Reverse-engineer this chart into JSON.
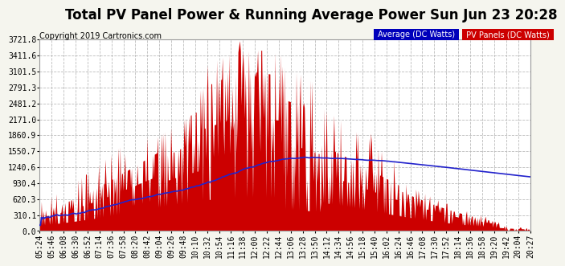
{
  "title": "Total PV Panel Power & Running Average Power Sun Jun 23 20:28",
  "copyright": "Copyright 2019 Cartronics.com",
  "legend_avg": "Average (DC Watts)",
  "legend_pv": "PV Panels (DC Watts)",
  "legend_avg_bg": "#0000bb",
  "legend_pv_bg": "#cc0000",
  "bg_color": "#f5f5ee",
  "plot_bg": "#ffffff",
  "ylim": [
    0,
    3721.8
  ],
  "yticks": [
    0.0,
    310.1,
    620.3,
    930.4,
    1240.6,
    1550.7,
    1860.9,
    2171.0,
    2481.2,
    2791.3,
    3101.5,
    3411.6,
    3721.8
  ],
  "time_labels": [
    "05:24",
    "05:46",
    "06:08",
    "06:30",
    "06:52",
    "07:14",
    "07:36",
    "07:58",
    "08:20",
    "08:42",
    "09:04",
    "09:26",
    "09:48",
    "10:10",
    "10:32",
    "10:54",
    "11:16",
    "11:38",
    "12:00",
    "12:22",
    "12:44",
    "13:06",
    "13:28",
    "13:50",
    "14:12",
    "14:34",
    "14:56",
    "15:18",
    "15:40",
    "16:02",
    "16:24",
    "16:46",
    "17:08",
    "17:30",
    "17:52",
    "18:14",
    "18:36",
    "18:58",
    "19:20",
    "19:42",
    "20:04",
    "20:27"
  ],
  "pv_color": "#cc0000",
  "avg_color": "#2222cc",
  "grid_color": "#bbbbbb",
  "title_fontsize": 12,
  "copyright_fontsize": 7,
  "tick_fontsize": 7
}
